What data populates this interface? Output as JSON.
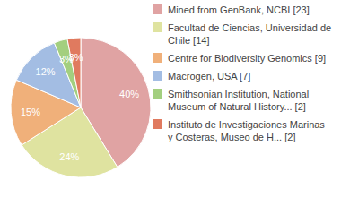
{
  "chart_data": {
    "type": "pie",
    "categories": [
      "Mined from GenBank, NCBI [23]",
      "Facultad de Ciencias, Universidad de Chile [14]",
      "Centre for Biodiversity Genomics [9]",
      "Macrogen, USA [7]",
      "Smithsonian Institution, National Museum of Natural History... [2]",
      "Instituto de Investigaciones Marinas y Costeras, Museo de H... [2]"
    ],
    "values": [
      40,
      24,
      15,
      12,
      3,
      3
    ],
    "value_labels": [
      "40%",
      "24%",
      "15%",
      "12%",
      "3%",
      "3%"
    ],
    "colors": [
      "#e0a3a3",
      "#dfe3a0",
      "#f0b07a",
      "#a3bde3",
      "#a3cf7f",
      "#e07a5f"
    ],
    "data_labels": true,
    "legend": "right"
  }
}
